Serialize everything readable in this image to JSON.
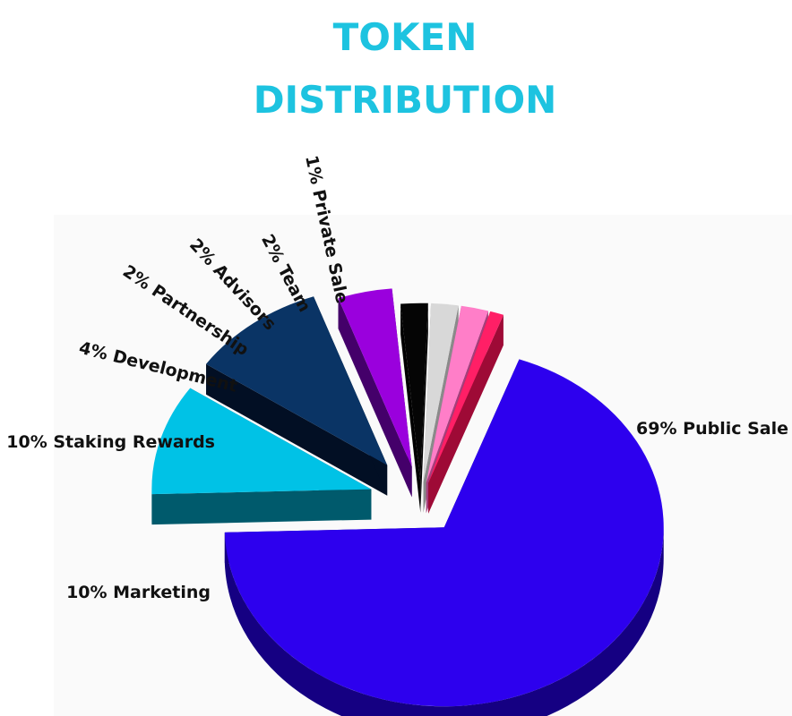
{
  "chart_data": {
    "type": "pie",
    "title_lines": [
      "TOKEN",
      "DISTRIBUTION"
    ],
    "slices": [
      {
        "label": "69% Public Sale",
        "value": 69,
        "color": "#2d00ee",
        "side": "#150082"
      },
      {
        "label": "10% Marketing",
        "value": 10,
        "color": "#00c2e6",
        "side": "#005a6c"
      },
      {
        "label": "10% Staking Rewards",
        "value": 10,
        "color": "#0a3465",
        "side": "#020f24"
      },
      {
        "label": "4% Development",
        "value": 4,
        "color": "#9a00dd",
        "side": "#44006a"
      },
      {
        "label": "2% Partnership",
        "value": 2,
        "color": "#050505",
        "side": "#000000"
      },
      {
        "label": "2% Advisors",
        "value": 2,
        "color": "#d8d8d8",
        "side": "#8a8a8a"
      },
      {
        "label": "2% Team",
        "value": 2,
        "color": "#ff7ec8",
        "side": "#a63f7c"
      },
      {
        "label": "1% Private Sale",
        "value": 1,
        "color": "#ff1f66",
        "side": "#9e0a36"
      }
    ]
  }
}
